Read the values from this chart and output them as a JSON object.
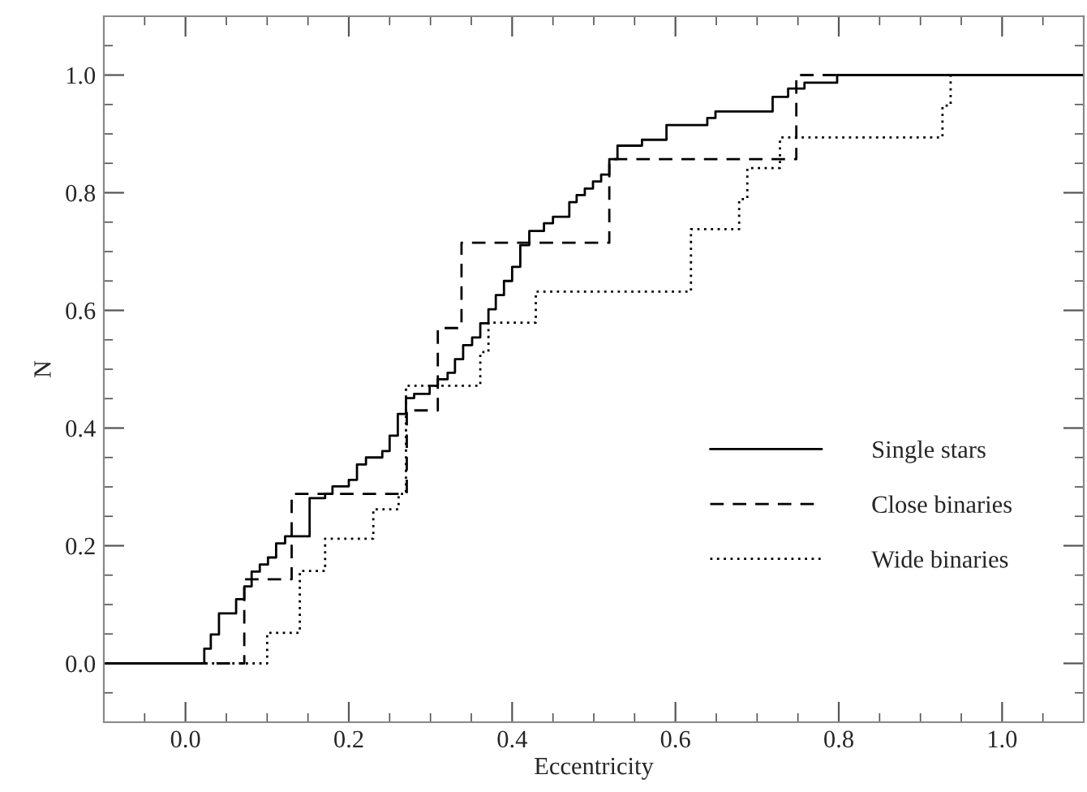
{
  "chart_data": {
    "type": "step",
    "xlabel": "Eccentricity",
    "ylabel": "N",
    "xlim": [
      -0.1,
      1.1
    ],
    "ylim": [
      -0.1,
      1.1
    ],
    "xticks": [
      {
        "value": 0.0,
        "label": "0.0"
      },
      0.2,
      0.4,
      0.6,
      0.8,
      {
        "value": 1.0,
        "label": "1.0"
      }
    ],
    "yticks": [
      {
        "value": 0.0,
        "label": "0.0"
      },
      0.2,
      0.4,
      0.6,
      0.8,
      {
        "value": 1.0,
        "label": "1.0"
      }
    ],
    "grid": false,
    "legend": "lower right",
    "marker": "none",
    "series": [
      {
        "name": "Single stars",
        "color": "#000000",
        "line_style": "solid",
        "x": [
          -0.1,
          0.023,
          0.031,
          0.041,
          0.062,
          0.072,
          0.081,
          0.091,
          0.101,
          0.111,
          0.122,
          0.152,
          0.171,
          0.18,
          0.2,
          0.21,
          0.221,
          0.241,
          0.25,
          0.26,
          0.27,
          0.28,
          0.299,
          0.309,
          0.321,
          0.33,
          0.34,
          0.351,
          0.361,
          0.371,
          0.38,
          0.39,
          0.4,
          0.41,
          0.421,
          0.439,
          0.45,
          0.47,
          0.479,
          0.489,
          0.499,
          0.509,
          0.519,
          0.529,
          0.559,
          0.589,
          0.639,
          0.649,
          0.719,
          0.738,
          0.758,
          0.798,
          1.1
        ],
        "values": [
          0,
          0.025,
          0.049,
          0.085,
          0.109,
          0.131,
          0.156,
          0.168,
          0.18,
          0.204,
          0.216,
          0.281,
          0.288,
          0.301,
          0.312,
          0.338,
          0.35,
          0.361,
          0.387,
          0.424,
          0.451,
          0.458,
          0.472,
          0.483,
          0.494,
          0.517,
          0.541,
          0.554,
          0.578,
          0.602,
          0.626,
          0.65,
          0.674,
          0.711,
          0.735,
          0.748,
          0.759,
          0.784,
          0.796,
          0.807,
          0.819,
          0.831,
          0.857,
          0.88,
          0.89,
          0.915,
          0.927,
          0.938,
          0.963,
          0.977,
          0.987,
          1.0,
          1.0
        ]
      },
      {
        "name": "Close binaries",
        "color": "#000000",
        "line_style": "dashed",
        "x": [
          -0.1,
          0.072,
          0.13,
          0.271,
          0.309,
          0.338,
          0.519,
          0.748,
          1.1
        ],
        "values": [
          0,
          0.143,
          0.288,
          0.43,
          0.57,
          0.715,
          0.857,
          1.0,
          1.0
        ]
      },
      {
        "name": "Wide binaries",
        "color": "#000000",
        "line_style": "dotted",
        "x": [
          -0.1,
          0.1,
          0.14,
          0.171,
          0.23,
          0.261,
          0.27,
          0.361,
          0.371,
          0.429,
          0.619,
          0.678,
          0.688,
          0.728,
          0.927,
          0.937,
          1.1
        ],
        "values": [
          0,
          0.052,
          0.157,
          0.212,
          0.262,
          0.288,
          0.472,
          0.529,
          0.579,
          0.632,
          0.738,
          0.789,
          0.842,
          0.894,
          0.948,
          1.0,
          1.0
        ]
      }
    ]
  }
}
